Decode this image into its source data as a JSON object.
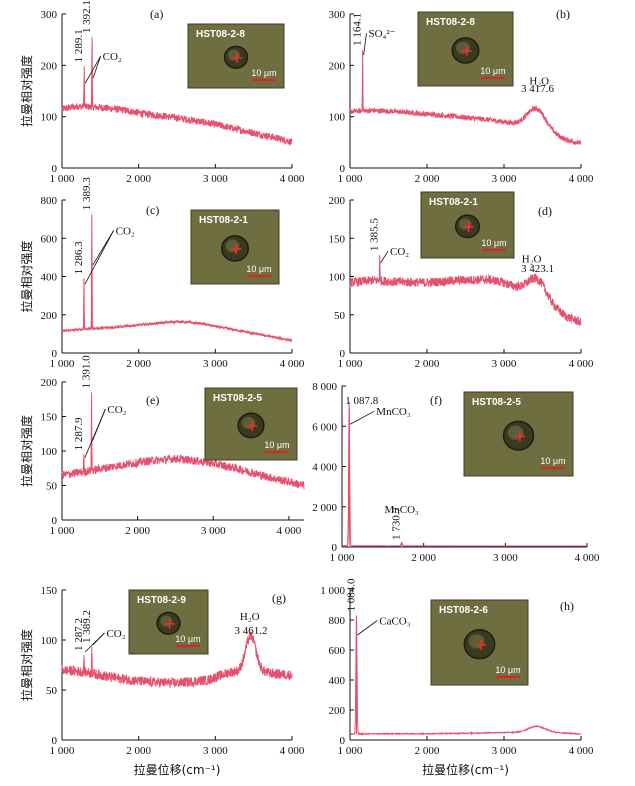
{
  "colors": {
    "spectrum": "#e4506e",
    "axis": "#111111",
    "inset_bg": "#6e6e40",
    "inset_border": "#3f3f22",
    "scale_bar": "#e02030",
    "crosshair": "#ff2a2a"
  },
  "shared": {
    "ylabel": "拉曼相对强度",
    "xlabel": "拉曼位移(cm⁻¹)"
  },
  "chart_data": [
    {
      "id": "a",
      "letter": "(a)",
      "type": "line",
      "xlim": [
        1000,
        4000
      ],
      "ylim": [
        0,
        300
      ],
      "xticks": [
        1000,
        2000,
        3000,
        4000
      ],
      "xtick_labels": [
        "1 000",
        "2 000",
        "3 000",
        "4 000"
      ],
      "yticks": [
        0,
        100,
        200,
        300
      ],
      "ytick_labels": [
        "0",
        "100",
        "200",
        "300"
      ],
      "baseline": [
        [
          1000,
          115
        ],
        [
          1200,
          120
        ],
        [
          1500,
          118
        ],
        [
          1800,
          113
        ],
        [
          2100,
          105
        ],
        [
          2400,
          100
        ],
        [
          2700,
          93
        ],
        [
          3000,
          85
        ],
        [
          3300,
          75
        ],
        [
          3600,
          65
        ],
        [
          3900,
          55
        ],
        [
          4000,
          50
        ]
      ],
      "noise": 7,
      "peaks": [
        {
          "x": 1289.1,
          "height": 198
        },
        {
          "x": 1392.1,
          "height": 255
        }
      ],
      "hump": null,
      "peak_labels": [
        {
          "x": 1289.1,
          "text": "1 289.1"
        },
        {
          "x": 1392.1,
          "text": "1 392.1"
        }
      ],
      "compound_labels": [
        {
          "text": "CO₂",
          "x": 1530,
          "y": 210,
          "targets": [
            [
              1289.1,
              165
            ],
            [
              1392.1,
              175
            ]
          ]
        }
      ],
      "extra_labels": [],
      "inset": {
        "label": "HST08-2-8",
        "scale": "10 μm"
      },
      "show_ylabel": true,
      "show_xlabel": false
    },
    {
      "id": "b",
      "letter": "(b)",
      "type": "line",
      "xlim": [
        1000,
        4000
      ],
      "ylim": [
        0,
        300
      ],
      "xticks": [
        1000,
        2000,
        3000,
        4000
      ],
      "xtick_labels": [
        "1 000",
        "2 000",
        "3 000",
        "4 000"
      ],
      "yticks": [
        0,
        100,
        200,
        300
      ],
      "ytick_labels": [
        "0",
        "100",
        "200",
        "300"
      ],
      "baseline": [
        [
          1000,
          110
        ],
        [
          1300,
          112
        ],
        [
          1600,
          110
        ],
        [
          2000,
          105
        ],
        [
          2400,
          100
        ],
        [
          2800,
          94
        ],
        [
          3000,
          90
        ],
        [
          3500,
          75
        ],
        [
          3800,
          55
        ],
        [
          4000,
          48
        ]
      ],
      "noise": 5,
      "peaks": [
        {
          "x": 1164.1,
          "height": 230
        }
      ],
      "hump": {
        "center": 3417.6,
        "width": 170,
        "height": 38
      },
      "peak_labels": [
        {
          "x": 1164.1,
          "text": "1 164.1"
        }
      ],
      "compound_labels": [
        {
          "text": "SO₄²⁻",
          "x": 1240,
          "y": 255,
          "targets": [
            [
              1164.1,
              220
            ]
          ]
        }
      ],
      "extra_labels": [
        {
          "text": "H₂O",
          "x": 3330,
          "y": 163
        },
        {
          "text": "3 417.6",
          "x": 3220,
          "y": 148
        }
      ],
      "inset": {
        "label": "HST08-2-8",
        "scale": "10 μm"
      },
      "show_ylabel": false,
      "show_xlabel": false
    },
    {
      "id": "c",
      "letter": "(c)",
      "type": "line",
      "xlim": [
        1000,
        4000
      ],
      "ylim": [
        0,
        800
      ],
      "xticks": [
        1000,
        2000,
        3000,
        4000
      ],
      "xtick_labels": [
        "1 000",
        "2 000",
        "3 000",
        "4 000"
      ],
      "yticks": [
        0,
        200,
        400,
        600,
        800
      ],
      "ytick_labels": [
        "0",
        "200",
        "400",
        "600",
        "800"
      ],
      "baseline": [
        [
          1000,
          115
        ],
        [
          1300,
          125
        ],
        [
          1700,
          135
        ],
        [
          2100,
          150
        ],
        [
          2500,
          165
        ],
        [
          2800,
          155
        ],
        [
          3200,
          125
        ],
        [
          3600,
          95
        ],
        [
          4000,
          65
        ]
      ],
      "noise": 6,
      "peaks": [
        {
          "x": 1286.3,
          "height": 390
        },
        {
          "x": 1389.3,
          "height": 725
        }
      ],
      "hump": null,
      "peak_labels": [
        {
          "x": 1286.3,
          "text": "1 286.3"
        },
        {
          "x": 1389.3,
          "text": "1 389.3"
        }
      ],
      "compound_labels": [
        {
          "text": "CO₂",
          "x": 1700,
          "y": 620,
          "targets": [
            [
              1286.3,
              360
            ],
            [
              1389.3,
              460
            ]
          ]
        }
      ],
      "extra_labels": [],
      "inset": {
        "label": "HST08-2-1",
        "scale": "10 μm"
      },
      "show_ylabel": true,
      "show_xlabel": false
    },
    {
      "id": "d",
      "letter": "(d)",
      "type": "line",
      "xlim": [
        1000,
        4000
      ],
      "ylim": [
        0,
        200
      ],
      "xticks": [
        1000,
        2000,
        3000,
        4000
      ],
      "xtick_labels": [
        "1 000",
        "2 000",
        "3 000",
        "4 000"
      ],
      "yticks": [
        0,
        50,
        100,
        150,
        200
      ],
      "ytick_labels": [
        "0",
        "50",
        "100",
        "150",
        "200"
      ],
      "baseline": [
        [
          1000,
          92
        ],
        [
          1300,
          95
        ],
        [
          1600,
          93
        ],
        [
          2000,
          92
        ],
        [
          2400,
          95
        ],
        [
          2800,
          96
        ],
        [
          3000,
          92
        ],
        [
          3500,
          72
        ],
        [
          3800,
          48
        ],
        [
          4000,
          40
        ]
      ],
      "noise": 6,
      "peaks": [
        {
          "x": 1385.5,
          "height": 128
        }
      ],
      "hump": {
        "center": 3423.1,
        "width": 160,
        "height": 22
      },
      "peak_labels": [
        {
          "x": 1385.5,
          "text": "1 385.5"
        }
      ],
      "compound_labels": [
        {
          "text": "CO₂",
          "x": 1520,
          "y": 128,
          "targets": [
            [
              1385.5,
              118
            ]
          ]
        }
      ],
      "extra_labels": [
        {
          "text": "H₂O",
          "x": 3230,
          "y": 118
        },
        {
          "text": "3 423.1",
          "x": 3220,
          "y": 106
        }
      ],
      "inset": {
        "label": "HST08-2-1",
        "scale": "10 μm"
      },
      "show_ylabel": false,
      "show_xlabel": false
    },
    {
      "id": "e",
      "letter": "(e)",
      "type": "line",
      "xlim": [
        1000,
        4200
      ],
      "ylim": [
        0,
        200
      ],
      "xticks": [
        1000,
        2000,
        3000,
        4000
      ],
      "xtick_labels": [
        "1 000",
        "2 000",
        "3 000",
        "4 000"
      ],
      "yticks": [
        0,
        50,
        100,
        150,
        200
      ],
      "ytick_labels": [
        "0",
        "50",
        "100",
        "150",
        "200"
      ],
      "baseline": [
        [
          1000,
          65
        ],
        [
          1300,
          70
        ],
        [
          1700,
          78
        ],
        [
          2100,
          85
        ],
        [
          2500,
          89
        ],
        [
          2900,
          84
        ],
        [
          3300,
          75
        ],
        [
          3700,
          63
        ],
        [
          4200,
          50
        ]
      ],
      "noise": 6,
      "peaks": [
        {
          "x": 1287.9,
          "height": 95
        },
        {
          "x": 1391.0,
          "height": 185
        }
      ],
      "hump": null,
      "peak_labels": [
        {
          "x": 1287.9,
          "text": "1 287.9"
        },
        {
          "x": 1391.0,
          "text": "1 391.0"
        }
      ],
      "compound_labels": [
        {
          "text": "CO₂",
          "x": 1600,
          "y": 155,
          "targets": [
            [
              1287.9,
              90
            ],
            [
              1391.0,
              115
            ]
          ]
        }
      ],
      "extra_labels": [],
      "inset": {
        "label": "HST08-2-5",
        "scale": "10 μm"
      },
      "show_ylabel": true,
      "show_xlabel": false
    },
    {
      "id": "f",
      "letter": "(f)",
      "type": "line",
      "xlim": [
        1000,
        4000
      ],
      "ylim": [
        0,
        8000
      ],
      "xticks": [
        1000,
        2000,
        3000,
        4000
      ],
      "xtick_labels": [
        "1 000",
        "2 000",
        "3 000",
        "4 000"
      ],
      "yticks": [
        0,
        2000,
        4000,
        6000,
        8000
      ],
      "ytick_labels": [
        "0",
        "2 000",
        "4 000",
        "6 000",
        "8 000"
      ],
      "baseline": [
        [
          1000,
          60
        ],
        [
          1500,
          50
        ],
        [
          2500,
          40
        ],
        [
          3500,
          30
        ],
        [
          3600,
          20
        ],
        [
          4000,
          5
        ]
      ],
      "noise": 15,
      "peaks": [
        {
          "x": 1087.8,
          "height": 7200,
          "width": 9
        },
        {
          "x": 1730.7,
          "height": 220,
          "width": 12
        }
      ],
      "hump": null,
      "peak_labels": [
        {
          "x": 1730.7,
          "text": "1 730.7",
          "y0": 250
        }
      ],
      "compound_labels": [
        {
          "text": "MnCO₃",
          "x": 1420,
          "y": 6550,
          "targets": [
            [
              1087.8,
              6100
            ]
          ]
        }
      ],
      "extra_labels": [
        {
          "text": "1 087.8",
          "x": 1040,
          "y": 7100
        },
        {
          "text": "MnCO₃",
          "x": 1520,
          "y": 1700
        }
      ],
      "inset": {
        "label": "HST08-2-5",
        "scale": "10 μm"
      },
      "show_ylabel": false,
      "show_xlabel": false
    },
    {
      "id": "g",
      "letter": "(g)",
      "type": "line",
      "xlim": [
        1000,
        4000
      ],
      "ylim": [
        0,
        150
      ],
      "xticks": [
        1000,
        2000,
        3000,
        4000
      ],
      "xtick_labels": [
        "1 000",
        "2 000",
        "3 000",
        "4 000"
      ],
      "yticks": [
        0,
        50,
        100,
        150
      ],
      "ytick_labels": [
        "0",
        "50",
        "100",
        "150"
      ],
      "baseline": [
        [
          1000,
          70
        ],
        [
          1300,
          68
        ],
        [
          1700,
          62
        ],
        [
          2100,
          58
        ],
        [
          2500,
          57
        ],
        [
          2900,
          60
        ],
        [
          3200,
          68
        ],
        [
          3600,
          68
        ],
        [
          3800,
          66
        ],
        [
          4000,
          65
        ]
      ],
      "noise": 5,
      "peaks": [
        {
          "x": 1287.2,
          "height": 85
        },
        {
          "x": 1389.2,
          "height": 93
        }
      ],
      "hump": {
        "center": 3461.2,
        "width": 95,
        "height": 36
      },
      "peak_labels": [
        {
          "x": 1287.2,
          "text": "1 287.2"
        },
        {
          "x": 1389.2,
          "text": "1 389.2"
        }
      ],
      "compound_labels": [
        {
          "text": "CO₂",
          "x": 1580,
          "y": 103,
          "targets": [
            [
              1287.2,
              88
            ],
            [
              1389.2,
              95
            ]
          ]
        }
      ],
      "extra_labels": [
        {
          "text": "H₂O",
          "x": 3320,
          "y": 120
        },
        {
          "text": "3 461.2",
          "x": 3250,
          "y": 106
        }
      ],
      "inset": {
        "label": "HST08-2-9",
        "scale": "10 μm"
      },
      "show_ylabel": true,
      "show_xlabel": true
    },
    {
      "id": "h",
      "letter": "(h)",
      "type": "line",
      "xlim": [
        1000,
        4000
      ],
      "ylim": [
        0,
        1000
      ],
      "xticks": [
        1000,
        2000,
        3000,
        4000
      ],
      "xtick_labels": [
        "1 000",
        "2 000",
        "3 000",
        "4 000"
      ],
      "yticks": [
        0,
        200,
        400,
        600,
        800,
        1000
      ],
      "ytick_labels": [
        "0",
        "200",
        "400",
        "600",
        "800",
        "1 000"
      ],
      "baseline": [
        [
          1000,
          40
        ],
        [
          1500,
          42
        ],
        [
          2000,
          42
        ],
        [
          2500,
          45
        ],
        [
          3000,
          50
        ],
        [
          3600,
          52
        ],
        [
          4000,
          40
        ]
      ],
      "noise": 3,
      "peaks": [
        {
          "x": 1084.0,
          "height": 830,
          "width": 10
        }
      ],
      "hump": {
        "center": 3420,
        "width": 150,
        "height": 40
      },
      "peak_labels": [
        {
          "x": 1084.0,
          "text": "1 084.0"
        }
      ],
      "compound_labels": [
        {
          "text": "CaCO₃",
          "x": 1380,
          "y": 770,
          "targets": [
            [
              1084.0,
              700
            ]
          ]
        }
      ],
      "extra_labels": [],
      "inset": {
        "label": "HST08-2-6",
        "scale": "10 μm"
      },
      "show_ylabel": false,
      "show_xlabel": true
    }
  ]
}
